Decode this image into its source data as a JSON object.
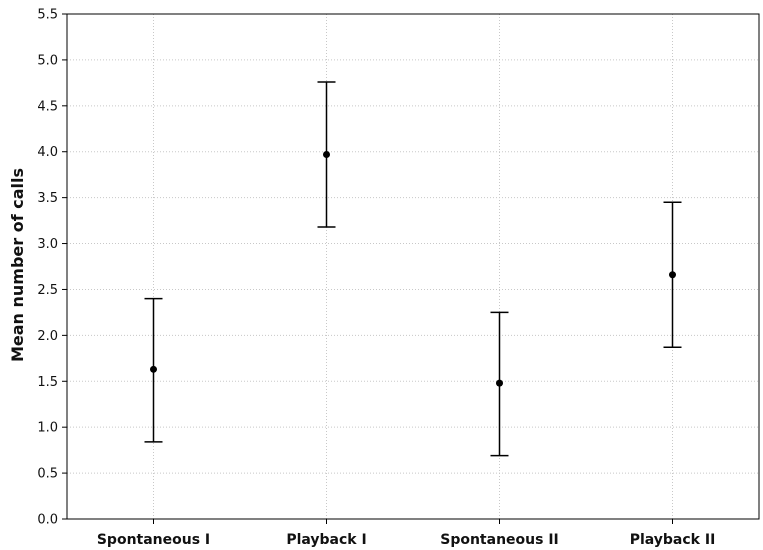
{
  "chart_data": {
    "type": "scatter",
    "title": "",
    "xlabel": "",
    "ylabel": "Mean number of calls",
    "ylim": [
      0.0,
      5.5
    ],
    "yticks": [
      "0.0",
      "0.5",
      "1.0",
      "1.5",
      "2.0",
      "2.5",
      "3.0",
      "3.5",
      "4.0",
      "4.5",
      "5.0",
      "5.5"
    ],
    "grid": true,
    "legend": "none",
    "categories": [
      "Spontaneous I",
      "Playback I",
      "Spontaneous II",
      "Playback II"
    ],
    "series": [
      {
        "values": [
          1.63,
          3.97,
          1.48,
          2.66
        ],
        "error_low": [
          0.84,
          3.18,
          0.69,
          1.87
        ],
        "error_high": [
          2.4,
          4.76,
          2.25,
          3.45
        ]
      }
    ],
    "colors": {
      "marker": "#000000",
      "grid": "#c8c8c8",
      "axis": "#000000"
    }
  }
}
